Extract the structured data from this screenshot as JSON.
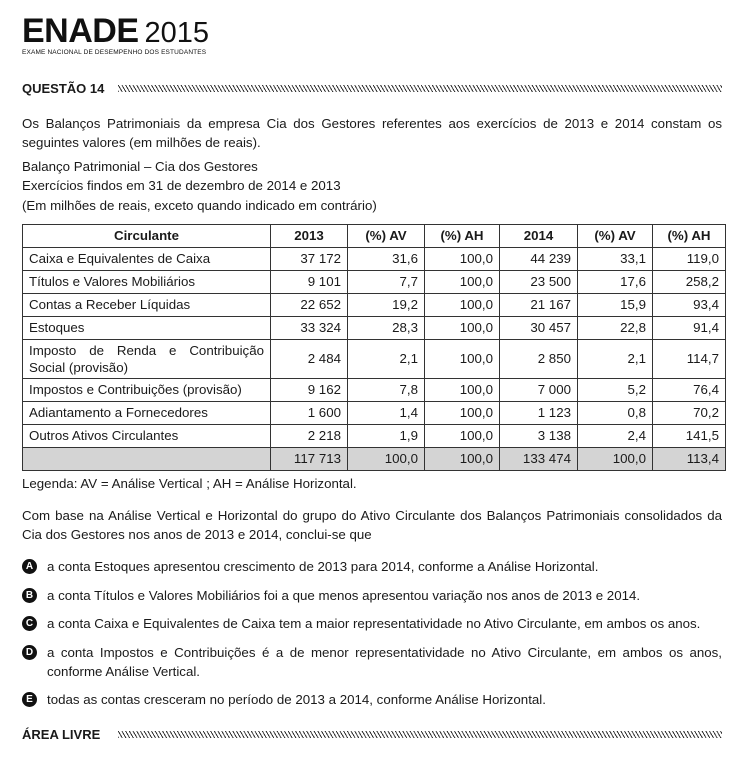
{
  "header": {
    "brand": "ENADE",
    "year": "2015",
    "subtitle": "EXAME NACIONAL DE DESEMPENHO DOS ESTUDANTES"
  },
  "question": {
    "title": "QUESTÃO 14",
    "intro": "Os Balanços Patrimoniais da empresa Cia dos Gestores referentes aos exercícios de 2013 e 2014 constam os seguintes valores (em milhões de reais).",
    "caption_line1": "Balanço Patrimonial – Cia dos Gestores",
    "caption_line2": "Exercícios findos em 31 de dezembro de 2014 e 2013",
    "caption_line3": "(Em milhões de reais, exceto quando indicado em contrário)"
  },
  "table": {
    "headers": [
      "Circulante",
      "2013",
      "(%) AV",
      "(%) AH",
      "2014",
      "(%) AV",
      "(%) AH"
    ],
    "rows": [
      [
        "Caixa e Equivalentes de Caixa",
        "37 172",
        "31,6",
        "100,0",
        "44 239",
        "33,1",
        "119,0"
      ],
      [
        "Títulos e Valores Mobiliários",
        "9 101",
        "7,7",
        "100,0",
        "23 500",
        "17,6",
        "258,2"
      ],
      [
        "Contas a Receber Líquidas",
        "22 652",
        "19,2",
        "100,0",
        "21 167",
        "15,9",
        "93,4"
      ],
      [
        "Estoques",
        "33 324",
        "28,3",
        "100,0",
        "30 457",
        "22,8",
        "91,4"
      ],
      [
        "Imposto de Renda e Contribuição Social (provisão)",
        "2 484",
        "2,1",
        "100,0",
        "2 850",
        "2,1",
        "114,7"
      ],
      [
        "Impostos e Contribuições (provisão)",
        "9 162",
        "7,8",
        "100,0",
        "7 000",
        "5,2",
        "76,4"
      ],
      [
        "Adiantamento a Fornecedores",
        "1 600",
        "1,4",
        "100,0",
        "1 123",
        "0,8",
        "70,2"
      ],
      [
        "Outros Ativos Circulantes",
        "2 218",
        "1,9",
        "100,0",
        "3 138",
        "2,4",
        "141,5"
      ]
    ],
    "total": [
      "",
      "117 713",
      "100,0",
      "100,0",
      "133 474",
      "100,0",
      "113,4"
    ]
  },
  "legend": "Legenda: AV = Análise Vertical ; AH = Análise Horizontal.",
  "prompt": "Com base na Análise Vertical e Horizontal do grupo do Ativo Circulante dos Balanços Patrimoniais consolidados da Cia dos Gestores nos anos de 2013 e 2014, conclui-se que",
  "options": [
    {
      "letter": "A",
      "text": "a conta Estoques apresentou crescimento de 2013 para 2014, conforme a Análise Horizontal."
    },
    {
      "letter": "B",
      "text": "a conta Títulos e Valores Mobiliários foi a que menos apresentou variação nos anos de 2013 e 2014."
    },
    {
      "letter": "C",
      "text": "a conta Caixa e Equivalentes de Caixa tem a maior representatividade no Ativo Circulante, em ambos os anos."
    },
    {
      "letter": "D",
      "text": "a conta Impostos e Contribuições é a de menor representatividade no Ativo Circulante, em ambos os anos, conforme Análise Vertical."
    },
    {
      "letter": "E",
      "text": "todas as contas cresceram no período de 2013 a 2014, conforme Análise Horizontal."
    }
  ],
  "footer": {
    "title": "ÁREA LIVRE"
  }
}
